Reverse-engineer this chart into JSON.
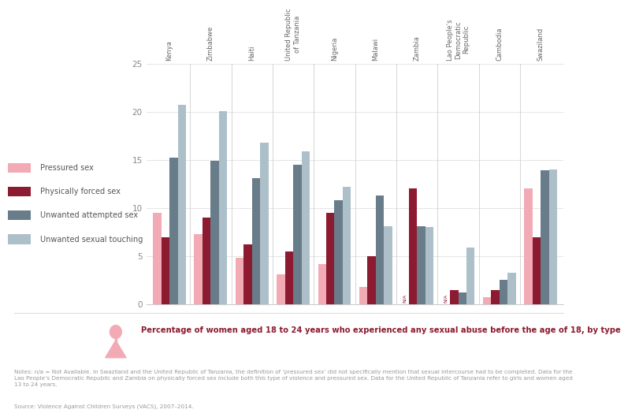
{
  "countries": [
    "Kenya",
    "Zimbabwe",
    "Haiti",
    "United Republic\nof Tanzania",
    "Nigeria",
    "Malawi",
    "Zambia",
    "Lao People’s\nDemocratic\nRepublic",
    "Cambodia",
    "Swaziland"
  ],
  "pressured_sex": [
    9.5,
    7.3,
    4.8,
    3.1,
    4.2,
    1.8,
    null,
    null,
    0.7,
    12.0
  ],
  "physically_forced_sex": [
    7.0,
    9.0,
    6.2,
    5.5,
    9.5,
    5.0,
    12.0,
    1.5,
    1.5,
    7.0
  ],
  "unwanted_attempted_sex": [
    15.2,
    14.9,
    13.1,
    14.5,
    10.8,
    11.3,
    8.1,
    1.2,
    2.5,
    13.9
  ],
  "unwanted_sexual_touching": [
    20.7,
    20.1,
    16.8,
    15.9,
    12.2,
    8.1,
    8.0,
    5.9,
    3.3,
    14.0
  ],
  "colors": {
    "pressured_sex": "#f2aab5",
    "physically_forced_sex": "#8c1a30",
    "unwanted_attempted_sex": "#687c8a",
    "unwanted_sexual_touching": "#adbfc9"
  },
  "legend_labels": [
    "Pressured sex",
    "Physically forced sex",
    "Unwanted attempted sex",
    "Unwanted sexual touching"
  ],
  "ylim": [
    0,
    25
  ],
  "yticks": [
    0,
    5,
    10,
    15,
    20,
    25
  ],
  "caption_title": "Percentage of women aged 18 to 24 years who experienced any sexual abuse before the age of 18, by type",
  "caption_title_color": "#8c1a30",
  "notes_text": "Notes: n/a = Not Available. In Swaziland and the United Republic of Tanzania, the definition of ‘pressured sex’ did not specifically mention that sexual intercourse had to be completed. Data for the Lao People’s Democratic Republic and Zambia on physically forced sex include both this type of violence and pressured sex. Data for the United Republic of Tanzania refer to girls and women aged 13 to 24 years.",
  "source_text": "Source: Violence Against Children Surveys (VACS), 2007–2014.",
  "na_label": "N/A",
  "background_color": "#ffffff"
}
